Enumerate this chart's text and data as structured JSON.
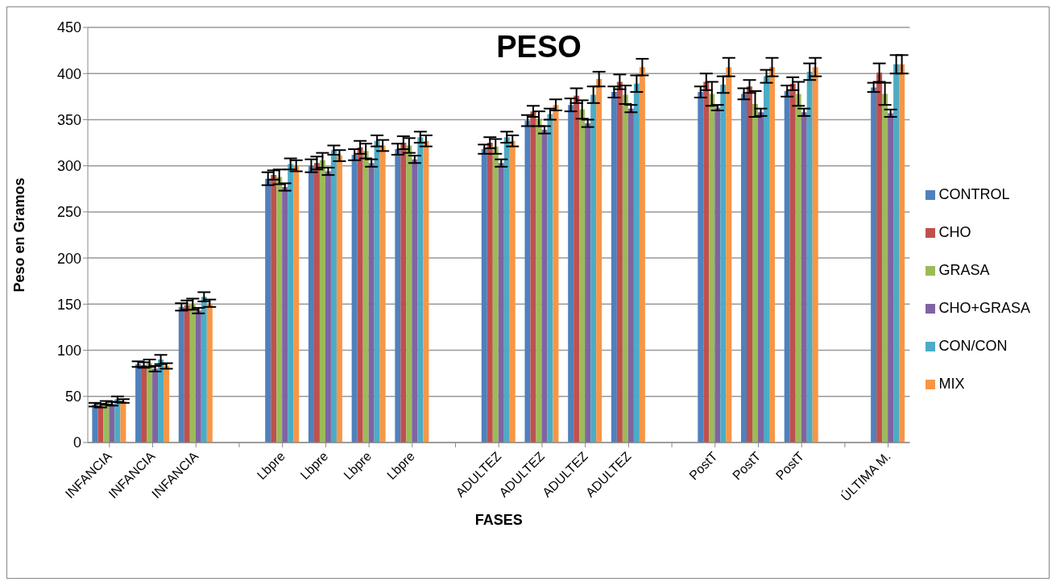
{
  "chart_data": {
    "type": "bar",
    "title": "PESO",
    "xlabel": "FASES",
    "ylabel": "Peso en Gramos",
    "categories": [
      "INFANCIA",
      "INFANCIA",
      "INFANCIA",
      null,
      "Lbpre",
      "Lbpre",
      "Lbpre",
      "Lbpre",
      null,
      "ADULTEZ",
      "ADULTEZ",
      "ADULTEZ",
      "ADULTEZ",
      null,
      "PostT",
      "PostT",
      "PostT",
      null,
      "ÚLTIMA M."
    ],
    "series": [
      {
        "name": "CONTROL",
        "color": "#4f81bd",
        "values": [
          41,
          85,
          147,
          null,
          286,
          300,
          312,
          318,
          null,
          318,
          349,
          366,
          380,
          null,
          380,
          378,
          381,
          null,
          385
        ],
        "errors": [
          2,
          3,
          4,
          null,
          7,
          7,
          6,
          6,
          null,
          5,
          6,
          7,
          6,
          null,
          6,
          6,
          6,
          null,
          5
        ]
      },
      {
        "name": "CHO",
        "color": "#c0504d",
        "values": [
          40,
          84,
          149,
          null,
          290,
          303,
          320,
          325,
          null,
          325,
          359,
          376,
          391,
          null,
          391,
          386,
          389,
          null,
          401
        ],
        "errors": [
          2,
          3,
          5,
          null,
          5,
          7,
          7,
          7,
          null,
          6,
          6,
          8,
          8,
          null,
          9,
          7,
          7,
          null,
          10
        ]
      },
      {
        "name": "GRASA",
        "color": "#9bbb59",
        "values": [
          43,
          86,
          150,
          null,
          288,
          306,
          316,
          322,
          null,
          321,
          351,
          361,
          377,
          null,
          378,
          367,
          378,
          null,
          378
        ],
        "errors": [
          2,
          4,
          6,
          null,
          8,
          8,
          8,
          8,
          null,
          8,
          8,
          10,
          10,
          null,
          13,
          14,
          13,
          null,
          12
        ]
      },
      {
        "name": "CHO+GRASA",
        "color": "#8064a2",
        "values": [
          42,
          80,
          143,
          null,
          277,
          294,
          303,
          307,
          null,
          303,
          339,
          346,
          362,
          null,
          363,
          358,
          358,
          null,
          357
        ],
        "errors": [
          2,
          3,
          3,
          null,
          4,
          4,
          4,
          4,
          null,
          4,
          4,
          4,
          4,
          null,
          3,
          4,
          4,
          null,
          4
        ]
      },
      {
        "name": "CON/CON",
        "color": "#4bacc6",
        "values": [
          47,
          90,
          158,
          null,
          302,
          317,
          327,
          331,
          null,
          331,
          356,
          377,
          389,
          null,
          388,
          397,
          402,
          null,
          410
        ],
        "errors": [
          3,
          5,
          5,
          null,
          6,
          5,
          6,
          6,
          null,
          6,
          6,
          9,
          9,
          null,
          9,
          7,
          9,
          null,
          10
        ]
      },
      {
        "name": "MIX",
        "color": "#f79646",
        "values": [
          45,
          83,
          151,
          null,
          300,
          311,
          322,
          327,
          null,
          327,
          366,
          394,
          407,
          null,
          407,
          407,
          407,
          null,
          410
        ],
        "errors": [
          2,
          3,
          4,
          null,
          6,
          6,
          6,
          6,
          null,
          6,
          6,
          8,
          9,
          null,
          10,
          10,
          10,
          null,
          10
        ]
      }
    ],
    "ylim": [
      0,
      450
    ],
    "yticks": [
      0,
      50,
      100,
      150,
      200,
      250,
      300,
      350,
      400,
      450
    ],
    "grid": "y",
    "legend": "right"
  }
}
